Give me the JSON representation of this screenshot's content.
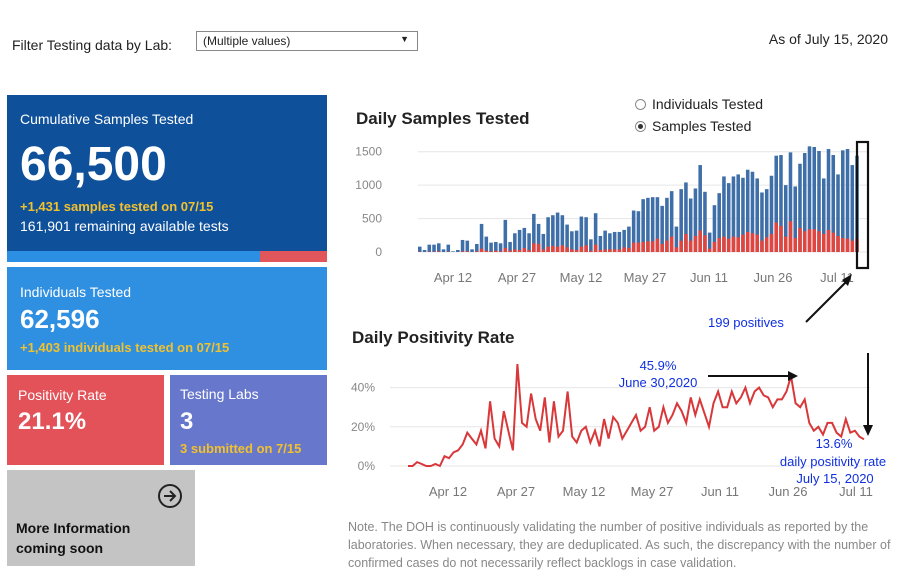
{
  "filter": {
    "label": "Filter Testing data by Lab:",
    "value": "(Multiple values)"
  },
  "as_of": "As of July 15, 2020",
  "cumulative": {
    "title": "Cumulative Samples Tested",
    "value": "66,500",
    "delta": "+1,431 samples tested on 07/15",
    "remaining": "161,901 remaining available tests",
    "used_fraction": 0.79
  },
  "individuals": {
    "title": "Individuals Tested",
    "value": "62,596",
    "delta": "+1,403  individuals  tested on 07/15"
  },
  "positivity": {
    "title": "Positivity Rate",
    "value": "21.1%"
  },
  "labs": {
    "title": "Testing Labs",
    "value": "3",
    "delta": "3 submitted on 7/15"
  },
  "more_info": {
    "line1": "More Information",
    "line2": "coming soon"
  },
  "toggle": {
    "option1": "Individuals Tested",
    "option2": "Samples Tested",
    "selected": "Samples Tested"
  },
  "chart_data": [
    {
      "type": "bar",
      "title": "Daily Samples Tested",
      "x_tick_labels": [
        "Apr 12",
        "Apr 27",
        "May 12",
        "May 27",
        "Jun 11",
        "Jun 26",
        "Jul 11"
      ],
      "y_tick_labels": [
        "0",
        "500",
        "1000",
        "1500"
      ],
      "ylim": [
        0,
        1600
      ],
      "grid": true,
      "series": [
        {
          "color": "#3f6fa8",
          "values": [
            80,
            30,
            110,
            110,
            130,
            40,
            110,
            10,
            30,
            180,
            170,
            40,
            120,
            420,
            230,
            140,
            150,
            130,
            480,
            150,
            280,
            330,
            360,
            280,
            570,
            420,
            270,
            520,
            550,
            590,
            550,
            410,
            310,
            320,
            530,
            520,
            190,
            580,
            240,
            320,
            280,
            300,
            300,
            330,
            380,
            620,
            610,
            790,
            810,
            820,
            820,
            690,
            810,
            910,
            380,
            940,
            1040,
            800,
            950,
            1300,
            900,
            290,
            700,
            880,
            1130,
            1030,
            1130,
            1160,
            1110,
            1230,
            1200,
            1100,
            890,
            940,
            1140,
            1440,
            1450,
            1000,
            1490,
            980,
            1320,
            1480,
            1580,
            1570,
            1510,
            1100,
            1540,
            1450,
            1160,
            1520,
            1540,
            1300,
            1440
          ]
        },
        {
          "color": "#e0463f",
          "values": [
            5,
            0,
            5,
            5,
            10,
            0,
            5,
            0,
            0,
            10,
            10,
            0,
            10,
            50,
            20,
            10,
            20,
            10,
            60,
            20,
            40,
            30,
            60,
            30,
            130,
            120,
            40,
            80,
            90,
            80,
            100,
            70,
            40,
            30,
            80,
            100,
            20,
            110,
            30,
            40,
            40,
            40,
            40,
            70,
            60,
            140,
            140,
            150,
            160,
            160,
            200,
            120,
            170,
            230,
            70,
            170,
            270,
            170,
            240,
            320,
            250,
            50,
            150,
            210,
            230,
            200,
            230,
            220,
            260,
            300,
            280,
            260,
            170,
            220,
            270,
            440,
            390,
            230,
            460,
            210,
            360,
            310,
            340,
            340,
            310,
            270,
            330,
            290,
            240,
            210,
            200,
            170,
            199
          ]
        }
      ],
      "annotation": "199 positives"
    },
    {
      "type": "line",
      "title": "Daily Positivity Rate",
      "x_tick_labels": [
        "Apr 12",
        "Apr 27",
        "May 12",
        "May 27",
        "Jun 11",
        "Jun 26",
        "Jul 11"
      ],
      "y_tick_labels": [
        "0%",
        "20%",
        "40%"
      ],
      "ylim": [
        0,
        50
      ],
      "grid": true,
      "series": [
        {
          "color": "#d9383a",
          "values": [
            0,
            0,
            2,
            1,
            0,
            0,
            1,
            0,
            5,
            4,
            7,
            8,
            11,
            17,
            14,
            11,
            18,
            9,
            33,
            14,
            10,
            28,
            18,
            8,
            52,
            22,
            20,
            37,
            24,
            18,
            35,
            12,
            33,
            15,
            18,
            38,
            15,
            12,
            18,
            20,
            12,
            18,
            10,
            24,
            14,
            25,
            22,
            14,
            18,
            22,
            26,
            18,
            20,
            30,
            18,
            20,
            30,
            22,
            26,
            32,
            28,
            22,
            35,
            26,
            34,
            27,
            20,
            32,
            38,
            30,
            30,
            38,
            32,
            35,
            40,
            32,
            38,
            40,
            36,
            35,
            30,
            34,
            34,
            38,
            45.9,
            32,
            30,
            34,
            22,
            18,
            20,
            16,
            22,
            22,
            17,
            15,
            24,
            17,
            18,
            15,
            13.6
          ]
        }
      ],
      "annotations": [
        "45.9%",
        "June 30,2020",
        "13.6%",
        "daily positivity rate",
        "July 15, 2020"
      ]
    }
  ],
  "note": "Note. The DOH is continuously validating the number of positive individuals as reported by the laboratories. When necessary, they are deduplicated. As such, the discrepancy with the number of confirmed cases do not necessarily reflect backlogs in case validation."
}
